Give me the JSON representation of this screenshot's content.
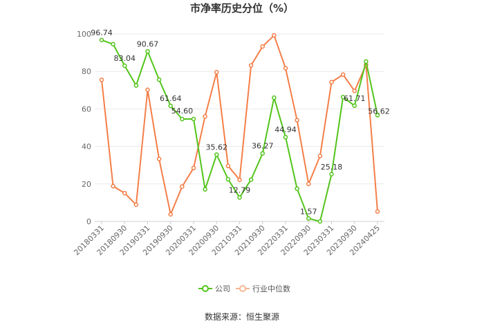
{
  "chart_data": {
    "type": "line",
    "title": "市净率历史分位（%）",
    "xlabel": "",
    "ylabel": "",
    "ylim": [
      0,
      100
    ],
    "yticks": [
      0,
      20,
      40,
      60,
      80,
      100
    ],
    "grid": "horizontal",
    "legend": "bottom-center",
    "x": [
      "20180331",
      "20180630",
      "20180930",
      "20181231",
      "20190331",
      "20190630",
      "20190930",
      "20191231",
      "20200331",
      "20200630",
      "20200930",
      "20201231",
      "20210331",
      "20210630",
      "20210930",
      "20211231",
      "20220331",
      "20220630",
      "20220930",
      "20221231",
      "20230331",
      "20230630",
      "20230930",
      "20231231",
      "20240425"
    ],
    "xtick_labels": [
      "20180331",
      "20180930",
      "20190331",
      "20190930",
      "20200331",
      "20200930",
      "20210331",
      "20210930",
      "20220331",
      "20220930",
      "20230331",
      "20230930",
      "20240425"
    ],
    "xtick_index": [
      0,
      2,
      4,
      6,
      8,
      10,
      12,
      14,
      16,
      18,
      20,
      22,
      24
    ],
    "series": [
      {
        "name": "公司",
        "color": "#52c41a",
        "values": [
          96.74,
          94.5,
          83.04,
          72.5,
          90.67,
          75.6,
          61.64,
          54.6,
          54.6,
          17.1,
          35.62,
          22.5,
          12.79,
          22.3,
          36.27,
          66.0,
          44.94,
          17.5,
          1.57,
          0.0,
          25.18,
          66.3,
          61.71,
          85.3,
          56.62
        ],
        "labels": {
          "0": "96.74",
          "2": "83.04",
          "4": "90.67",
          "6": "61.64",
          "7": "54.60",
          "10": "35.62",
          "12": "12.79",
          "14": "36.27",
          "16": "44.94",
          "18": "1.57",
          "20": "25.18",
          "22": "61.71",
          "24": "56.62"
        }
      },
      {
        "name": "行业中位数",
        "color": "#f47e47",
        "values": [
          75.5,
          18.8,
          15.1,
          8.9,
          70.2,
          33.3,
          3.8,
          18.6,
          28.5,
          56.0,
          79.6,
          29.6,
          22.2,
          83.2,
          93.3,
          99.2,
          81.7,
          54.0,
          20.0,
          34.9,
          74.3,
          78.3,
          69.6,
          83.5,
          5.3
        ]
      }
    ]
  },
  "source_text": "数据来源：恒生聚源"
}
